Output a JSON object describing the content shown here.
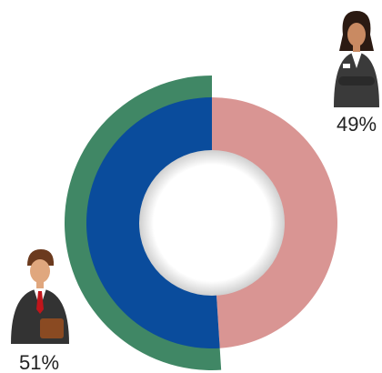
{
  "chart_data": {
    "type": "donut",
    "values": [
      49,
      51
    ],
    "value_labels": [
      "49%",
      "51%"
    ],
    "colors": [
      "#d99593",
      "#0a4c9c"
    ],
    "accent_color": "#408765"
  }
}
